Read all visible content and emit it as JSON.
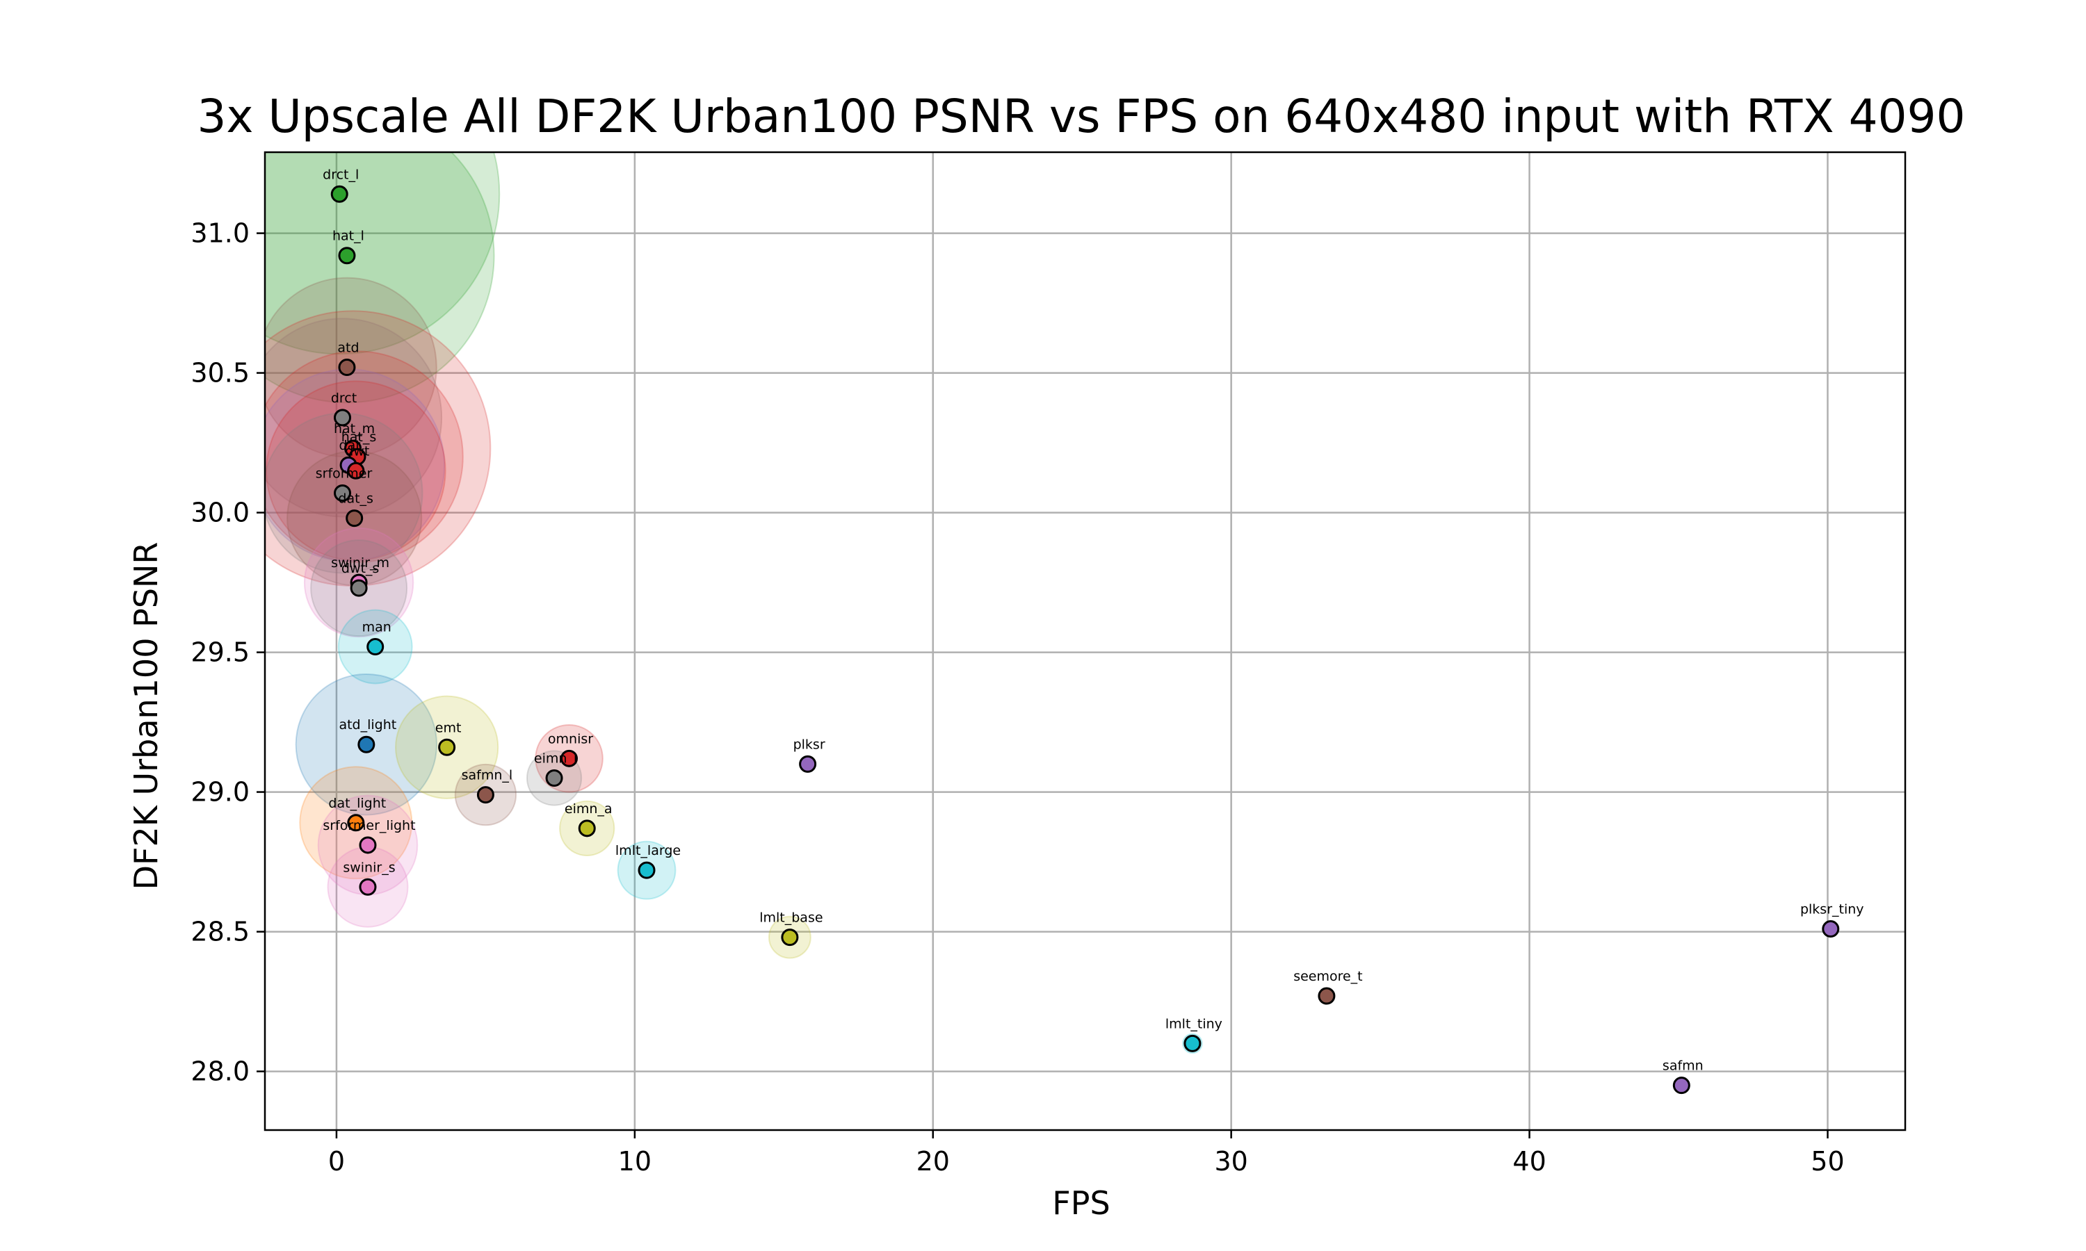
{
  "chart_data": {
    "type": "scatter",
    "title": "3x Upscale All DF2K Urban100 PSNR vs FPS on 640x480 input with RTX 4090",
    "xlabel": "FPS",
    "ylabel": "DF2K Urban100 PSNR",
    "xlim": [
      -2.4,
      52.6
    ],
    "ylim": [
      27.79,
      31.29
    ],
    "xticks": [
      0,
      10,
      20,
      30,
      40,
      50
    ],
    "xtick_labels": [
      "0",
      "10",
      "20",
      "30",
      "40",
      "50"
    ],
    "yticks": [
      28.0,
      28.5,
      29.0,
      29.5,
      30.0,
      30.5,
      31.0
    ],
    "ytick_labels": [
      "28.0",
      "28.5",
      "29.0",
      "29.5",
      "30.0",
      "30.5",
      "31.0"
    ],
    "grid": true,
    "marker_note": "marker circle = point; translucent halo size reflects model size",
    "points": [
      {
        "label": "drct_l",
        "x": 0.1,
        "y": 31.14,
        "halo": 1.0,
        "color": "#2ca02c"
      },
      {
        "label": "hat_l",
        "x": 0.35,
        "y": 30.92,
        "halo": 0.92,
        "color": "#2ca02c"
      },
      {
        "label": "atd",
        "x": 0.35,
        "y": 30.52,
        "halo": 0.56,
        "color": "#8c564b"
      },
      {
        "label": "drct",
        "x": 0.2,
        "y": 30.34,
        "halo": 0.62,
        "color": "#7f7f7f"
      },
      {
        "label": "hat_m",
        "x": 0.55,
        "y": 30.23,
        "halo": 0.86,
        "color": "#d62728"
      },
      {
        "label": "hat_s",
        "x": 0.7,
        "y": 30.2,
        "halo": 0.66,
        "color": "#d62728"
      },
      {
        "label": "dat",
        "x": 0.4,
        "y": 30.17,
        "halo": 0.6,
        "color": "#9467bd"
      },
      {
        "label": "dwt",
        "x": 0.65,
        "y": 30.15,
        "halo": 0.56,
        "color": "#d62728"
      },
      {
        "label": "srformer",
        "x": 0.2,
        "y": 30.07,
        "halo": 0.5,
        "color": "#7f7f7f"
      },
      {
        "label": "dat_s",
        "x": 0.6,
        "y": 29.98,
        "halo": 0.42,
        "color": "#8c564b"
      },
      {
        "label": "swinir_m",
        "x": 0.75,
        "y": 29.75,
        "halo": 0.34,
        "color": "#e377c2"
      },
      {
        "label": "dwt_s",
        "x": 0.75,
        "y": 29.73,
        "halo": 0.3,
        "color": "#7f7f7f"
      },
      {
        "label": "man",
        "x": 1.3,
        "y": 29.52,
        "halo": 0.23,
        "color": "#17becf"
      },
      {
        "label": "atd_light",
        "x": 1.0,
        "y": 29.17,
        "halo": 0.44,
        "color": "#1f77b4"
      },
      {
        "label": "emt",
        "x": 3.7,
        "y": 29.16,
        "halo": 0.32,
        "color": "#bcbd22"
      },
      {
        "label": "omnisr",
        "x": 7.8,
        "y": 29.12,
        "halo": 0.21,
        "color": "#d62728"
      },
      {
        "label": "eimn_l",
        "x": 7.3,
        "y": 29.05,
        "halo": 0.17,
        "color": "#7f7f7f"
      },
      {
        "label": "plksr",
        "x": 15.8,
        "y": 29.1,
        "halo": 0.0,
        "color": "#9467bd"
      },
      {
        "label": "safmn_l",
        "x": 5.0,
        "y": 28.99,
        "halo": 0.19,
        "color": "#8c564b"
      },
      {
        "label": "dat_light",
        "x": 0.65,
        "y": 28.89,
        "halo": 0.35,
        "color": "#ff7f0e"
      },
      {
        "label": "eimn_a",
        "x": 8.4,
        "y": 28.87,
        "halo": 0.17,
        "color": "#bcbd22"
      },
      {
        "label": "srformer_light",
        "x": 1.05,
        "y": 28.81,
        "halo": 0.31,
        "color": "#e377c2"
      },
      {
        "label": "lmlt_large",
        "x": 10.4,
        "y": 28.72,
        "halo": 0.18,
        "color": "#17becf"
      },
      {
        "label": "swinir_s",
        "x": 1.05,
        "y": 28.66,
        "halo": 0.25,
        "color": "#e377c2"
      },
      {
        "label": "lmlt_base",
        "x": 15.2,
        "y": 28.48,
        "halo": 0.13,
        "color": "#bcbd22"
      },
      {
        "label": "plksr_tiny",
        "x": 50.1,
        "y": 28.51,
        "halo": 0.0,
        "color": "#9467bd"
      },
      {
        "label": "seemore_t",
        "x": 33.2,
        "y": 28.27,
        "halo": 0.0,
        "color": "#8c564b"
      },
      {
        "label": "lmlt_tiny",
        "x": 28.7,
        "y": 28.1,
        "halo": 0.06,
        "color": "#17becf"
      },
      {
        "label": "safmn",
        "x": 45.1,
        "y": 27.95,
        "halo": 0.0,
        "color": "#9467bd"
      }
    ]
  }
}
